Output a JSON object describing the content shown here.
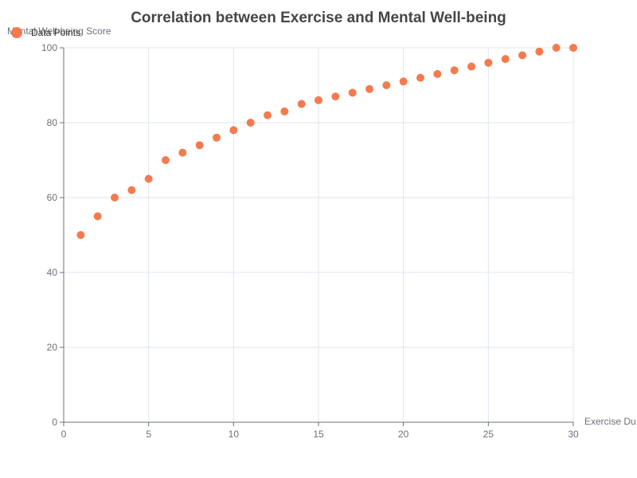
{
  "chart_data": {
    "type": "scatter",
    "title": "Correlation between Exercise and Mental Well-being",
    "xlabel": "Exercise Du",
    "ylabel": "Mental Well-being Score",
    "xlim": [
      0,
      30
    ],
    "ylim": [
      0,
      100
    ],
    "x_ticks": [
      0,
      5,
      10,
      15,
      20,
      25,
      30
    ],
    "y_ticks": [
      0,
      20,
      40,
      60,
      80,
      100
    ],
    "grid": true,
    "legend_position": "top-left",
    "series": [
      {
        "name": "Data Points",
        "color": "#f47b4e",
        "points": [
          {
            "x": 1,
            "y": 50
          },
          {
            "x": 2,
            "y": 55
          },
          {
            "x": 3,
            "y": 60
          },
          {
            "x": 4,
            "y": 62
          },
          {
            "x": 5,
            "y": 65
          },
          {
            "x": 6,
            "y": 70
          },
          {
            "x": 7,
            "y": 72
          },
          {
            "x": 8,
            "y": 74
          },
          {
            "x": 9,
            "y": 76
          },
          {
            "x": 10,
            "y": 78
          },
          {
            "x": 11,
            "y": 80
          },
          {
            "x": 12,
            "y": 82
          },
          {
            "x": 13,
            "y": 83
          },
          {
            "x": 14,
            "y": 85
          },
          {
            "x": 15,
            "y": 86
          },
          {
            "x": 16,
            "y": 87
          },
          {
            "x": 17,
            "y": 88
          },
          {
            "x": 18,
            "y": 89
          },
          {
            "x": 19,
            "y": 90
          },
          {
            "x": 20,
            "y": 91
          },
          {
            "x": 21,
            "y": 92
          },
          {
            "x": 22,
            "y": 93
          },
          {
            "x": 23,
            "y": 94
          },
          {
            "x": 24,
            "y": 95
          },
          {
            "x": 25,
            "y": 96
          },
          {
            "x": 26,
            "y": 97
          },
          {
            "x": 27,
            "y": 98
          },
          {
            "x": 28,
            "y": 99
          },
          {
            "x": 29,
            "y": 100
          },
          {
            "x": 30,
            "y": 100
          }
        ]
      }
    ]
  }
}
